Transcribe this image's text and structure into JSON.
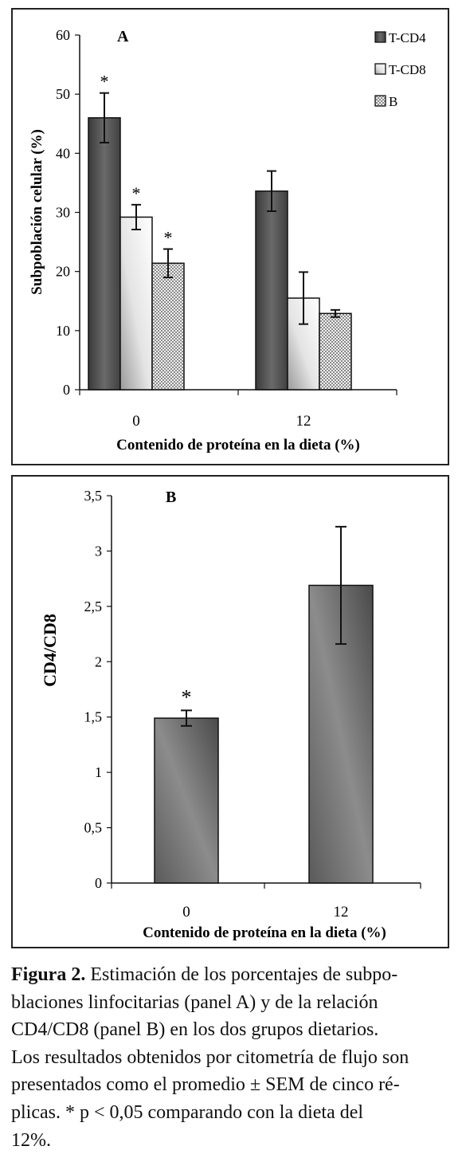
{
  "figures": [
    {
      "panel_label": "A",
      "ylabel": "Subpoblación celular (%)",
      "xlabel": "Contenido de proteína en la dieta (%)"
    },
    {
      "panel_label": "B",
      "ylabel": "CD4/CD8",
      "xlabel": "Contenido de proteína en la dieta (%)"
    }
  ],
  "chart_data": [
    {
      "type": "bar",
      "title": "",
      "categories": [
        "0",
        "12"
      ],
      "ylim": [
        0,
        60
      ],
      "yticks": [
        "0",
        "10",
        "20",
        "30",
        "40",
        "50",
        "60"
      ],
      "ytick_values": [
        0,
        10,
        20,
        30,
        40,
        50,
        60
      ],
      "grid": false,
      "legend": "top-right",
      "series": [
        {
          "name": "T-CD4",
          "values": [
            46,
            33.6
          ],
          "errors": [
            4.2,
            3.4
          ],
          "sig": [
            "*",
            ""
          ],
          "fill": "dark"
        },
        {
          "name": "T-CD8",
          "values": [
            29.2,
            15.5
          ],
          "errors": [
            2.1,
            4.4
          ],
          "sig": [
            "*",
            ""
          ],
          "fill": "light"
        },
        {
          "name": "B",
          "values": [
            21.4,
            12.9
          ],
          "errors": [
            2.4,
            0.6
          ],
          "sig": [
            "*",
            ""
          ],
          "fill": "checker"
        }
      ]
    },
    {
      "type": "bar",
      "title": "",
      "categories": [
        "0",
        "12"
      ],
      "ylim": [
        0,
        3.5
      ],
      "yticks": [
        "0",
        "0,5",
        "1",
        "1,5",
        "2",
        "2,5",
        "3",
        "3,5"
      ],
      "ytick_values": [
        0,
        0.5,
        1,
        1.5,
        2,
        2.5,
        3,
        3.5
      ],
      "grid": false,
      "series": [
        {
          "values": [
            1.49,
            2.69
          ],
          "errors": [
            0.07,
            0.53
          ],
          "sig": [
            "*",
            ""
          ]
        }
      ]
    }
  ],
  "caption": {
    "label": "Figura 2.",
    "lines": [
      " Estimación de los porcentajes de subpo-",
      "blaciones linfocitarias (panel A) y de la relación",
      "CD4/CD8 (panel B) en los dos grupos dietarios.",
      "Los resultados obtenidos por citometría de flujo son",
      "presentados como el promedio ± SEM de cinco ré-",
      "plicas. * p < 0,05 comparando con la dieta del",
      "12%."
    ]
  }
}
